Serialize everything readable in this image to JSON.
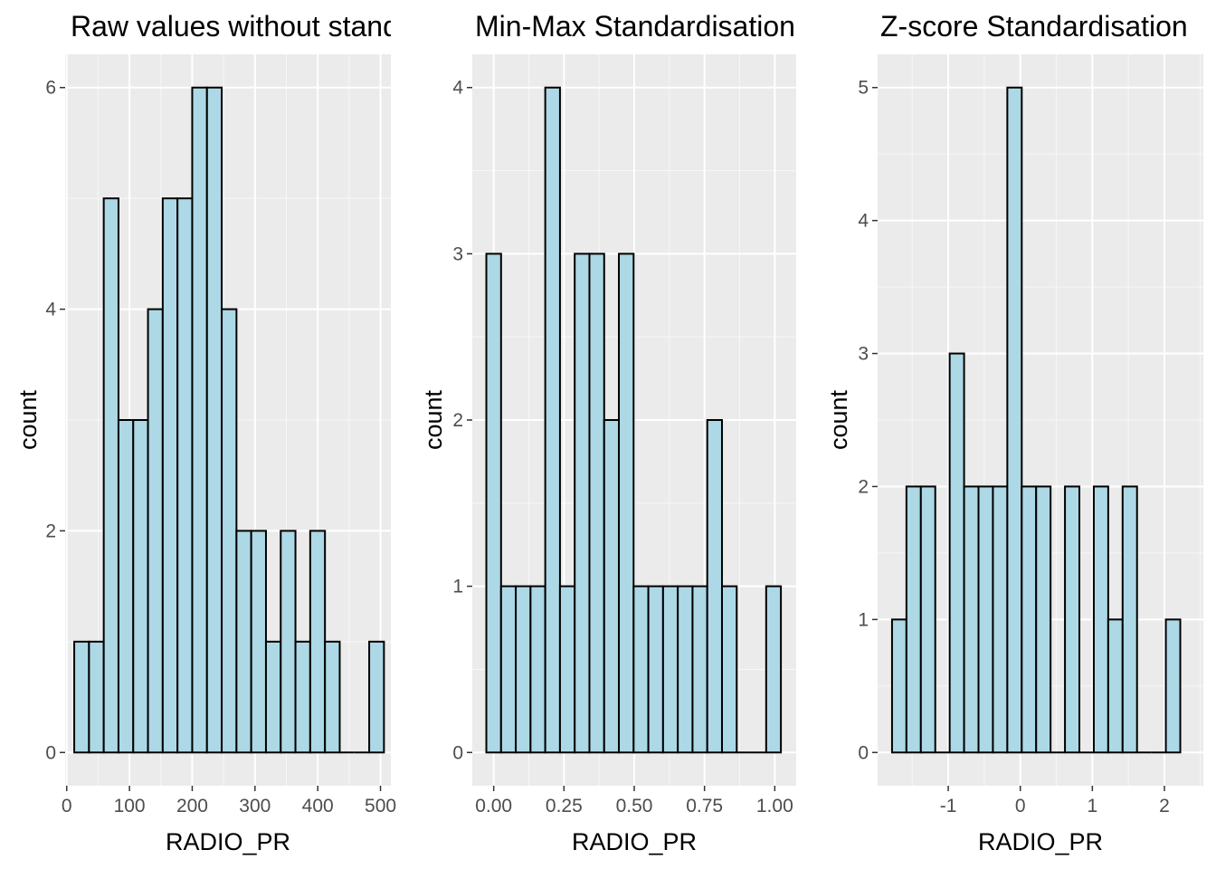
{
  "colors": {
    "panel_background": "#ebebeb",
    "grid_major": "#ffffff",
    "bar_fill": "#add8e6",
    "bar_stroke": "#000000",
    "tick_color": "#333333",
    "tick_label_color": "#4d4d4d"
  },
  "chart_data": [
    {
      "type": "bar",
      "title": "Raw values without standardisation",
      "xlabel": "RADIO_PR",
      "ylabel": "count",
      "xlim": [
        -2.5,
        516.5
      ],
      "ylim": [
        -0.3,
        6.3
      ],
      "x_ticks": [
        0,
        100,
        200,
        300,
        400,
        500
      ],
      "x_tick_labels": [
        "0",
        "100",
        "200",
        "300",
        "400",
        "500"
      ],
      "y_ticks": [
        0,
        2,
        4,
        6
      ],
      "y_tick_labels": [
        "0",
        "2",
        "4",
        "6"
      ],
      "grid": true,
      "bin_width": 23.5,
      "bins_x_start": [
        12,
        35.5,
        59,
        82.5,
        106,
        129.5,
        153,
        176.5,
        200,
        223.5,
        247,
        270.5,
        294,
        317.5,
        341,
        364.5,
        388,
        411.5,
        435,
        458.5,
        482
      ],
      "values": [
        1,
        1,
        5,
        3,
        3,
        4,
        5,
        5,
        6,
        6,
        4,
        2,
        2,
        1,
        2,
        1,
        2,
        1,
        0,
        0,
        1
      ]
    },
    {
      "type": "bar",
      "title": "Min-Max Standardisation",
      "xlabel": "RADIO_PR",
      "ylabel": "count",
      "xlim": [
        -0.0762,
        1.0762
      ],
      "ylim": [
        -0.2,
        4.2
      ],
      "x_ticks": [
        0,
        0.25,
        0.5,
        0.75,
        1.0
      ],
      "x_tick_labels": [
        "0.00",
        "0.25",
        "0.50",
        "0.75",
        "1.00"
      ],
      "y_ticks": [
        0,
        1,
        2,
        3,
        4
      ],
      "y_tick_labels": [
        "0",
        "1",
        "2",
        "3",
        "4"
      ],
      "grid": true,
      "bin_width": 0.0524,
      "bins_x_start": [
        -0.0262,
        0.0262,
        0.0786,
        0.131,
        0.1834,
        0.2358,
        0.2882,
        0.3406,
        0.393,
        0.4454,
        0.4978,
        0.5502,
        0.6026,
        0.655,
        0.7074,
        0.7598,
        0.8122,
        0.8646,
        0.917,
        0.9694
      ],
      "values": [
        3,
        1,
        1,
        1,
        4,
        1,
        3,
        3,
        2,
        3,
        1,
        1,
        1,
        1,
        1,
        2,
        1,
        0,
        0,
        1
      ]
    },
    {
      "type": "bar",
      "title": "Z-score Standardisation",
      "xlabel": "RADIO_PR",
      "ylabel": "count",
      "xlim": [
        -1.98,
        2.54
      ],
      "ylim": [
        -0.25,
        5.25
      ],
      "x_ticks": [
        -1,
        0,
        1,
        2
      ],
      "x_tick_labels": [
        "-1",
        "0",
        "1",
        "2"
      ],
      "y_ticks": [
        0,
        1,
        2,
        3,
        4,
        5
      ],
      "y_tick_labels": [
        "0",
        "1",
        "2",
        "3",
        "4",
        "5"
      ],
      "grid": true,
      "bin_width": 0.2,
      "bins_x_start": [
        -1.78,
        -1.58,
        -1.38,
        -1.18,
        -0.98,
        -0.78,
        -0.58,
        -0.38,
        -0.18,
        0.02,
        0.22,
        0.42,
        0.62,
        0.82,
        1.02,
        1.22,
        1.42,
        1.62,
        1.82,
        2.02
      ],
      "values": [
        1,
        2,
        2,
        0,
        3,
        2,
        2,
        2,
        5,
        2,
        2,
        0,
        2,
        0,
        2,
        1,
        2,
        0,
        0,
        1
      ]
    }
  ]
}
